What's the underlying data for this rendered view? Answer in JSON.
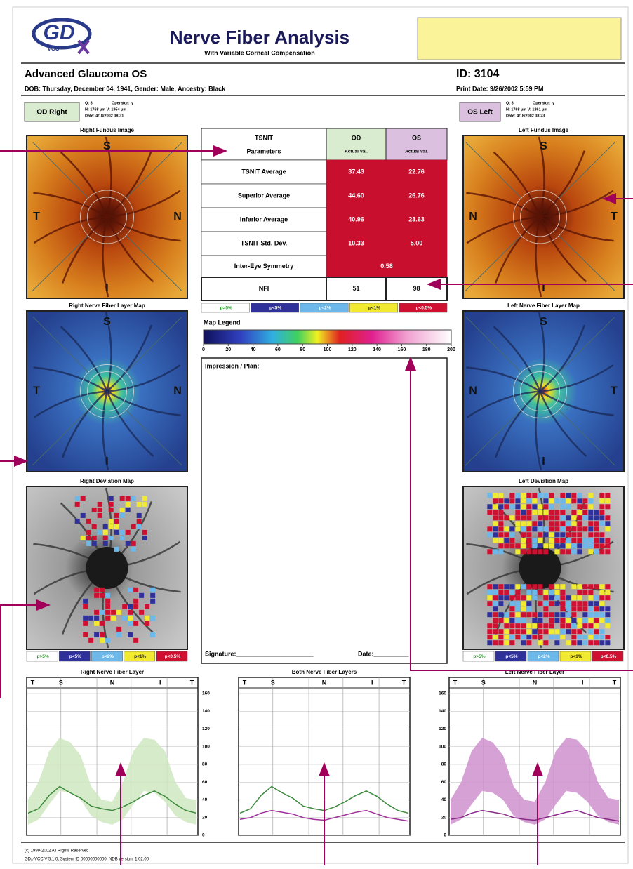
{
  "header": {
    "logo": "VCC",
    "title": "Nerve Fiber Analysis",
    "subtitle": "With Variable Corneal Compensation"
  },
  "patient": {
    "name": "Advanced Glaucoma OS",
    "id": "ID: 3104",
    "details": "DOB: Thursday, December 04, 1941, Gender: Male, Ancestry: Black",
    "print_date": "Print Date: 9/26/2002 5:59 PM"
  },
  "eyes": [
    {
      "label": "OD Right",
      "color": "#d9ecd0",
      "info": [
        "Q: 8",
        "Operator: jy",
        "H: 1768 µm V: 1954 µm",
        "Date: 4/18/2002 08:31"
      ],
      "fundus_title": "Right Fundus Image",
      "map_title": "Right Nerve Fiber Layer Map",
      "deviation_title": "Right Deviation Map",
      "orientation": {
        "top": "S",
        "left": "T",
        "right": "N",
        "bottom": "I"
      }
    },
    {
      "label": "OS Left",
      "color": "#dcc0e0",
      "info": [
        "Q: 8",
        "Operator: jy",
        "H: 1768 µm V: 1861 µm",
        "Date: 4/18/2002 08:23"
      ],
      "fundus_title": "Left Fundus Image",
      "map_title": "Left Nerve Fiber Layer Map",
      "deviation_title": "Left Deviation Map",
      "orientation": {
        "top": "S",
        "left": "N",
        "right": "T",
        "bottom": "I"
      }
    }
  ],
  "table": {
    "header": [
      [
        "TSNIT",
        "Parameters"
      ],
      [
        "OD",
        "Actual Val."
      ],
      [
        "OS",
        "Actual Val."
      ]
    ],
    "rows": [
      [
        "TSNIT Average",
        "37.43",
        "22.76"
      ],
      [
        "Superior Average",
        "44.60",
        "26.76"
      ],
      [
        "Inferior Average",
        "40.96",
        "23.63"
      ],
      [
        "TSNIT Std. Dev.",
        "10.33",
        "5.00"
      ],
      [
        "Inter-Eye Symmetry",
        "0.58"
      ],
      [
        "NFI",
        "51",
        "98"
      ]
    ]
  },
  "significance_legend": [
    {
      "label": "p>5%",
      "color": "#ffffff",
      "text_color": "#2a9a2a"
    },
    {
      "label": "p<5%",
      "color": "#30309a",
      "text_color": "#ffffff"
    },
    {
      "label": "p<2%",
      "color": "#6cb8ea",
      "text_color": "#ffffff"
    },
    {
      "label": "p<1%",
      "color": "#f2ea30",
      "text_color": "#222222"
    },
    {
      "label": "p<0.5%",
      "color": "#d01030",
      "text_color": "#ffffff"
    }
  ],
  "map_legend": {
    "title": "Map Legend",
    "ticks": [
      0,
      20,
      40,
      60,
      80,
      100,
      120,
      140,
      160,
      180,
      200
    ]
  },
  "impression": {
    "title": "Impression / Plan:",
    "signature": "Signature:______________________",
    "date": "Date:__________"
  },
  "graphs": [
    {
      "title": "Right Nerve Fiber Layer",
      "header": [
        "T",
        "S",
        "N",
        "I",
        "T"
      ],
      "ylim": [
        0,
        160
      ],
      "yticks": [
        0,
        20,
        40,
        60,
        80,
        100,
        120,
        140,
        160
      ],
      "tick_labels": "right",
      "band": {
        "color": "#cfe8bf",
        "upper": [
          40,
          60,
          95,
          110,
          105,
          90,
          55,
          40,
          38,
          60,
          95,
          110,
          108,
          95,
          60,
          42,
          40
        ],
        "lower": [
          12,
          18,
          35,
          50,
          48,
          40,
          22,
          15,
          12,
          18,
          35,
          50,
          48,
          38,
          22,
          15,
          12
        ]
      },
      "lines": [
        {
          "color": "#3c8a3c",
          "values": [
            25,
            30,
            45,
            55,
            48,
            42,
            33,
            30,
            28,
            32,
            38,
            45,
            50,
            44,
            35,
            28,
            25
          ]
        }
      ]
    },
    {
      "title": "Both Nerve Fiber Layers",
      "header": [
        "T",
        "S",
        "N",
        "I",
        "T"
      ],
      "ylim": [
        0,
        160
      ],
      "yticks": [
        0,
        20,
        40,
        60,
        80,
        100,
        120,
        140,
        160
      ],
      "tick_labels": "none",
      "lines": [
        {
          "color": "#3c8a3c",
          "values": [
            25,
            30,
            45,
            55,
            48,
            42,
            33,
            30,
            28,
            32,
            38,
            45,
            50,
            44,
            35,
            28,
            25
          ]
        },
        {
          "color": "#a0309a",
          "values": [
            18,
            20,
            25,
            28,
            26,
            24,
            20,
            18,
            17,
            20,
            23,
            26,
            28,
            24,
            20,
            18,
            16
          ]
        }
      ]
    },
    {
      "title": "Left Nerve Fiber Layer",
      "header": [
        "T",
        "S",
        "N",
        "I",
        "T"
      ],
      "ylim": [
        0,
        160
      ],
      "yticks": [
        0,
        20,
        40,
        60,
        80,
        100,
        120,
        140,
        160
      ],
      "tick_labels": "left",
      "band": {
        "color": "#cf90cc",
        "upper": [
          40,
          60,
          95,
          110,
          105,
          90,
          55,
          40,
          38,
          60,
          95,
          110,
          108,
          95,
          60,
          42,
          40
        ],
        "lower": [
          12,
          18,
          35,
          50,
          48,
          40,
          22,
          15,
          12,
          18,
          35,
          50,
          48,
          38,
          22,
          15,
          12
        ]
      },
      "lines": [
        {
          "color": "#8a2a88",
          "values": [
            18,
            20,
            25,
            28,
            26,
            24,
            20,
            18,
            17,
            20,
            23,
            26,
            28,
            24,
            20,
            18,
            16
          ]
        }
      ]
    }
  ],
  "footer": [
    "(c) 1999-2002 All Rights Reserved",
    "GDx-VCC  V 5.1.0, System ID 00000000000, NDB version: 1.02.00"
  ]
}
